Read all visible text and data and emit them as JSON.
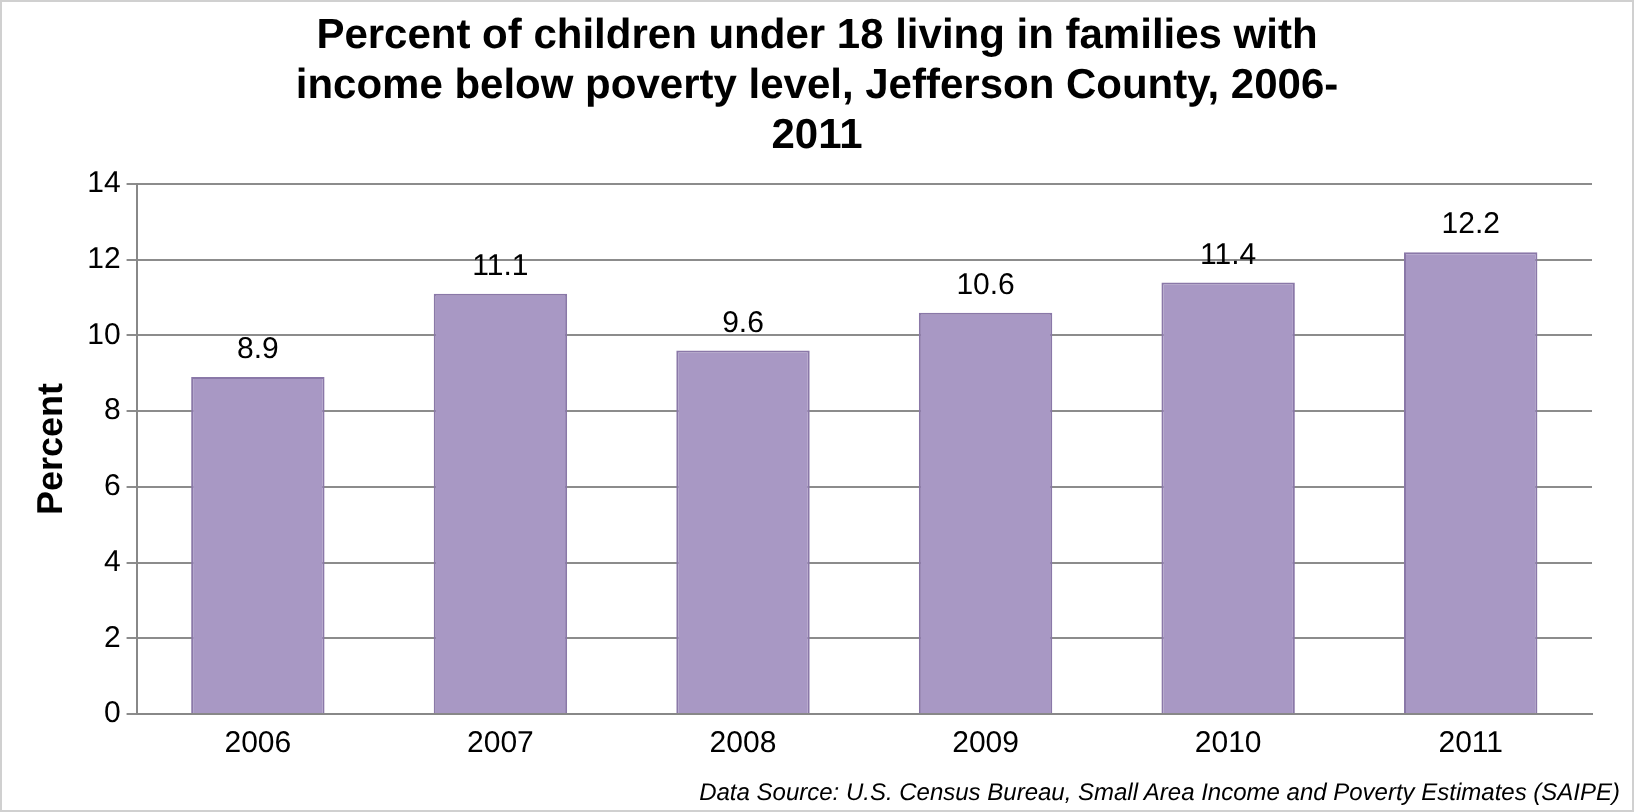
{
  "chart_data": {
    "type": "bar",
    "title": "Percent of children under 18 living in families with income below poverty level, Jefferson County, 2006-2011",
    "ylabel": "Percent",
    "categories": [
      "2006",
      "2007",
      "2008",
      "2009",
      "2010",
      "2011"
    ],
    "values": [
      8.9,
      11.1,
      9.6,
      10.6,
      11.4,
      12.2
    ],
    "color": "#a898c4",
    "ylim": [
      0,
      14
    ],
    "yticks": [
      0,
      2,
      4,
      6,
      8,
      10,
      12,
      14
    ],
    "grid": "y",
    "data_labels": true,
    "annotations": [
      "Data Source: U.S. Census Bureau, Small Area Income and Poverty Estimates (SAIPE)"
    ]
  }
}
